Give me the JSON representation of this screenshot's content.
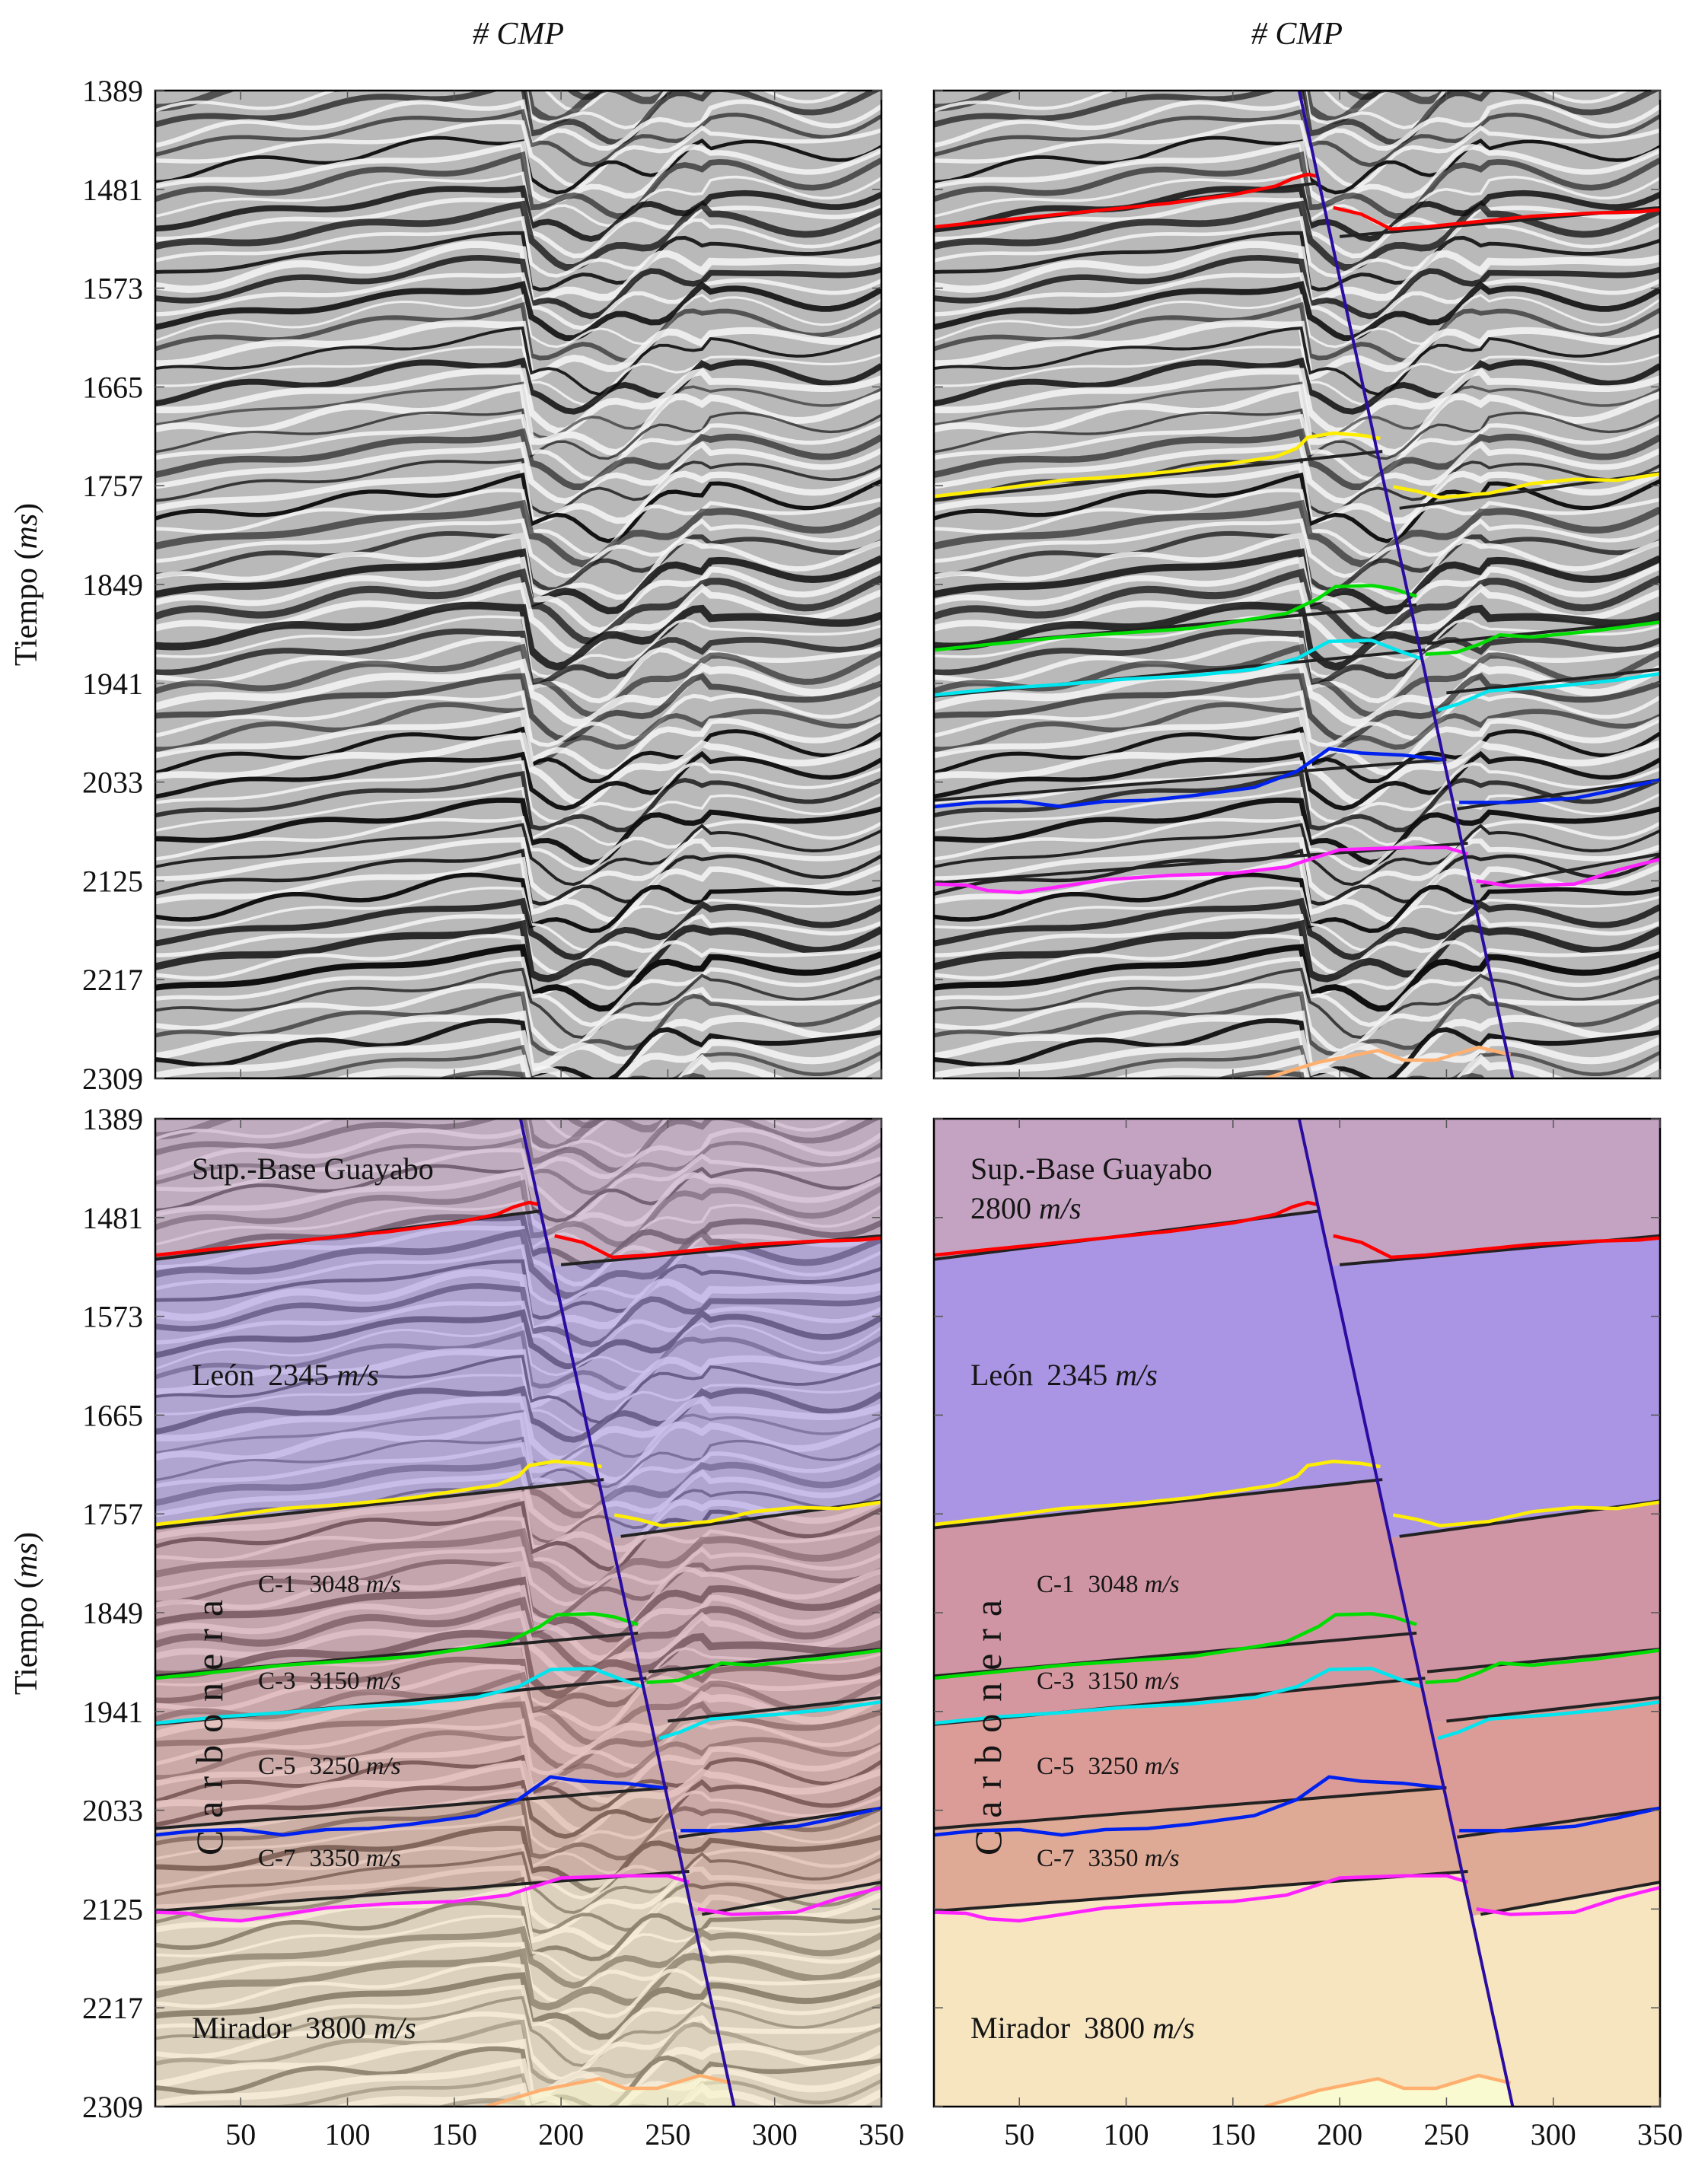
{
  "titles": {
    "left": "# CMP",
    "right": "# CMP"
  },
  "ylabel": {
    "text": "Tiempo",
    "unit": "ms"
  },
  "labels": {
    "guayabo": "Sup.-Base Guayabo",
    "guayabo_velocity": "2800",
    "leon": "León",
    "leon_velocity": "2345",
    "c1": "C-1",
    "c1_velocity": "3048",
    "c3": "C-3",
    "c3_velocity": "3150",
    "c5": "C-5",
    "c5_velocity": "3250",
    "c7": "C-7",
    "c7_velocity": "3350",
    "carbonera": "Carbonera",
    "mirador": "Mirador",
    "mirador_velocity": "3800",
    "unit": "m/s"
  },
  "chart_data": {
    "type": "line",
    "title": "# CMP",
    "xlabel": "# CMP",
    "ylabel": "Tiempo (ms)",
    "xlim": [
      10,
      350
    ],
    "ylim": [
      2309,
      1389
    ],
    "x_ticks": [
      50,
      100,
      150,
      200,
      250,
      300,
      350
    ],
    "y_ticks": [
      1389,
      1481,
      1573,
      1665,
      1757,
      1849,
      1941,
      2033,
      2125,
      2217,
      2309
    ],
    "panels": [
      "seismic",
      "seismic-interpreted",
      "velocity-model-over-seismic",
      "velocity-model"
    ],
    "fault": [
      [
        181,
        1389
      ],
      [
        281,
        2309
      ]
    ],
    "horizons": [
      {
        "name": "red",
        "color": "#ff0000",
        "left": [
          [
            10,
            1516
          ],
          [
            30,
            1512
          ],
          [
            60,
            1506
          ],
          [
            90,
            1500
          ],
          [
            120,
            1494
          ],
          [
            150,
            1486
          ],
          [
            170,
            1478
          ],
          [
            178,
            1471
          ],
          [
            185,
            1467
          ],
          [
            190,
            1469
          ]
        ],
        "right": [
          [
            197,
            1498
          ],
          [
            210,
            1504
          ],
          [
            224,
            1518
          ],
          [
            240,
            1516
          ],
          [
            260,
            1512
          ],
          [
            290,
            1506
          ],
          [
            320,
            1503
          ],
          [
            340,
            1502
          ],
          [
            350,
            1500
          ]
        ],
        "trend_left": [
          [
            10,
            1520
          ],
          [
            190,
            1475
          ]
        ],
        "trend_right": [
          [
            200,
            1525
          ],
          [
            350,
            1498
          ]
        ]
      },
      {
        "name": "yellow",
        "color": "#ffee00",
        "left": [
          [
            10,
            1767
          ],
          [
            40,
            1760
          ],
          [
            70,
            1752
          ],
          [
            100,
            1748
          ],
          [
            130,
            1742
          ],
          [
            150,
            1736
          ],
          [
            170,
            1730
          ],
          [
            180,
            1722
          ],
          [
            185,
            1712
          ],
          [
            197,
            1708
          ],
          [
            210,
            1710
          ],
          [
            219,
            1713
          ]
        ],
        "right": [
          [
            225,
            1758
          ],
          [
            236,
            1762
          ],
          [
            247,
            1768
          ],
          [
            270,
            1764
          ],
          [
            290,
            1755
          ],
          [
            310,
            1751
          ],
          [
            330,
            1752
          ],
          [
            350,
            1746
          ]
        ],
        "trend_left": [
          [
            10,
            1770
          ],
          [
            220,
            1725
          ]
        ],
        "trend_right": [
          [
            228,
            1778
          ],
          [
            350,
            1745
          ]
        ]
      },
      {
        "name": "green",
        "color": "#00dd00",
        "left": [
          [
            10,
            1910
          ],
          [
            40,
            1904
          ],
          [
            70,
            1898
          ],
          [
            100,
            1894
          ],
          [
            130,
            1890
          ],
          [
            150,
            1884
          ],
          [
            175,
            1876
          ],
          [
            190,
            1862
          ],
          [
            198,
            1851
          ],
          [
            215,
            1850
          ],
          [
            225,
            1853
          ],
          [
            236,
            1860
          ]
        ],
        "right": [
          [
            240,
            1914
          ],
          [
            255,
            1912
          ],
          [
            265,
            1905
          ],
          [
            275,
            1896
          ],
          [
            290,
            1898
          ],
          [
            320,
            1892
          ],
          [
            350,
            1884
          ]
        ],
        "trend_left": [
          [
            10,
            1908
          ],
          [
            236,
            1868
          ]
        ],
        "trend_right": [
          [
            241,
            1904
          ],
          [
            350,
            1883
          ]
        ]
      },
      {
        "name": "cyan",
        "color": "#00e5ee",
        "left": [
          [
            10,
            1952
          ],
          [
            40,
            1946
          ],
          [
            70,
            1942
          ],
          [
            100,
            1937
          ],
          [
            130,
            1934
          ],
          [
            160,
            1928
          ],
          [
            180,
            1918
          ],
          [
            195,
            1902
          ],
          [
            215,
            1901
          ],
          [
            228,
            1911
          ],
          [
            238,
            1918
          ]
        ],
        "right": [
          [
            246,
            1966
          ],
          [
            256,
            1960
          ],
          [
            270,
            1948
          ],
          [
            300,
            1944
          ],
          [
            330,
            1938
          ],
          [
            350,
            1932
          ]
        ],
        "trend_left": [
          [
            10,
            1953
          ],
          [
            240,
            1910
          ]
        ],
        "trend_right": [
          [
            250,
            1950
          ],
          [
            350,
            1928
          ]
        ]
      },
      {
        "name": "blue",
        "color": "#0022ee",
        "left": [
          [
            10,
            2056
          ],
          [
            30,
            2052
          ],
          [
            50,
            2051
          ],
          [
            70,
            2056
          ],
          [
            90,
            2051
          ],
          [
            110,
            2050
          ],
          [
            130,
            2046
          ],
          [
            160,
            2038
          ],
          [
            180,
            2023
          ],
          [
            195,
            2002
          ],
          [
            210,
            2006
          ],
          [
            230,
            2008
          ],
          [
            248,
            2012
          ]
        ],
        "right": [
          [
            256,
            2052
          ],
          [
            280,
            2052
          ],
          [
            310,
            2048
          ],
          [
            330,
            2040
          ],
          [
            350,
            2031
          ]
        ],
        "trend_left": [
          [
            10,
            2050
          ],
          [
            250,
            2012
          ]
        ],
        "trend_right": [
          [
            255,
            2058
          ],
          [
            350,
            2031
          ]
        ]
      },
      {
        "name": "magenta",
        "color": "#ff22ff",
        "left": [
          [
            10,
            2128
          ],
          [
            25,
            2129
          ],
          [
            35,
            2134
          ],
          [
            50,
            2136
          ],
          [
            70,
            2130
          ],
          [
            90,
            2124
          ],
          [
            120,
            2120
          ],
          [
            150,
            2118
          ],
          [
            175,
            2112
          ],
          [
            200,
            2096
          ],
          [
            230,
            2094
          ],
          [
            250,
            2094
          ],
          [
            260,
            2100
          ]
        ],
        "right": [
          [
            264,
            2125
          ],
          [
            280,
            2130
          ],
          [
            310,
            2128
          ],
          [
            330,
            2115
          ],
          [
            350,
            2105
          ]
        ],
        "trend_left": [
          [
            10,
            2127
          ],
          [
            260,
            2090
          ]
        ],
        "trend_right": [
          [
            266,
            2130
          ],
          [
            350,
            2100
          ]
        ]
      },
      {
        "name": "orange",
        "color": "#ffb070",
        "left": [
          [
            165,
            2309
          ],
          [
            190,
            2294
          ],
          [
            205,
            2288
          ],
          [
            218,
            2283
          ],
          [
            230,
            2292
          ],
          [
            245,
            2292
          ],
          [
            265,
            2280
          ],
          [
            280,
            2287
          ]
        ],
        "right": []
      }
    ],
    "layers": [
      {
        "name": "Sup.-Base Guayabo",
        "velocity_ms": 2800,
        "color": "#c4a3c2"
      },
      {
        "name": "León",
        "velocity_ms": 2345,
        "color": "#a995e4"
      },
      {
        "name": "C-1",
        "velocity_ms": 3048,
        "color": "#cf95a4"
      },
      {
        "name": "C-3",
        "velocity_ms": 3150,
        "color": "#d5979f"
      },
      {
        "name": "C-5",
        "velocity_ms": 3250,
        "color": "#db9c97"
      },
      {
        "name": "C-7",
        "velocity_ms": 3350,
        "color": "#dea995"
      },
      {
        "name": "Mirador",
        "velocity_ms": 3800,
        "color": "#f7e5c0"
      }
    ],
    "colors": {
      "fault": "#2a0ca0",
      "trend": "#222222",
      "below_mirador": "#fafad0"
    }
  }
}
